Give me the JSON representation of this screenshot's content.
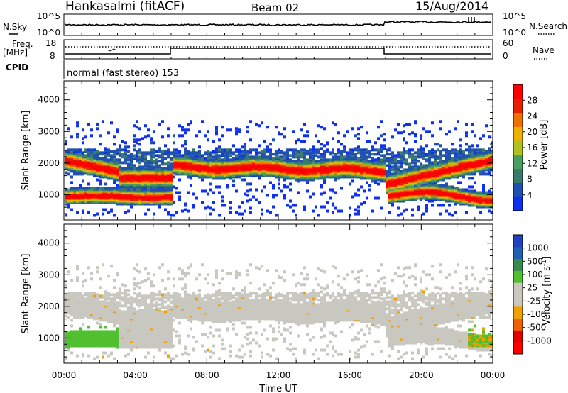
{
  "header": {
    "station": "Hankasalmi (fitACF)",
    "beam": "Beam 02",
    "date": "15/Aug/2014"
  },
  "strip_noise": {
    "left_label": "N.Sky",
    "right_label": "N.Search",
    "left_ticks": [
      "10^5",
      "10^0"
    ],
    "right_ticks": [
      "10^5",
      "10^0"
    ]
  },
  "strip_freq": {
    "left_label_1": "Freq.",
    "left_label_2": "[MHz]",
    "right_label": "Nave",
    "left_ticks": [
      "18",
      "8"
    ],
    "right_ticks": [
      "60",
      "0"
    ]
  },
  "strip_cpid": {
    "label": "CPID",
    "text": "normal (fast stereo) 153"
  },
  "time_axis": {
    "label": "Time UT",
    "ticks": [
      "00:00",
      "04:00",
      "08:00",
      "12:00",
      "16:00",
      "20:00",
      "00:00"
    ]
  },
  "colors": {
    "power_scale": [
      "#1030f0",
      "#2050b0",
      "#3a7a6a",
      "#4aa060",
      "#b0c020",
      "#f0b000",
      "#f07000",
      "#e82000",
      "#ff0000"
    ],
    "velocity_scale": [
      "#2040c0",
      "#2060b0",
      "#3a8a50",
      "#50c030",
      "#c8c8c0",
      "#c8c8c0",
      "#f0a000",
      "#f06000",
      "#e00000",
      "#ff0000"
    ]
  },
  "chart_data": [
    {
      "type": "heatmap",
      "panel": "power",
      "ylabel": "Slant Range [km]",
      "xlabel": "Time UT",
      "x_ticks": [
        "00:00",
        "04:00",
        "08:00",
        "12:00",
        "16:00",
        "20:00",
        "00:00"
      ],
      "y_ticks": [
        1000,
        2000,
        3000,
        4000
      ],
      "ylim": [
        200,
        4600
      ],
      "colorbar_label": "Power [dB]",
      "colorbar_ticks": [
        4,
        8,
        12,
        16,
        20,
        24,
        28
      ],
      "colorbar_range": [
        0,
        32
      ]
    },
    {
      "type": "heatmap",
      "panel": "velocity",
      "ylabel": "Slant Range [km]",
      "xlabel": "Time UT",
      "x_ticks": [
        "00:00",
        "04:00",
        "08:00",
        "12:00",
        "16:00",
        "20:00",
        "00:00"
      ],
      "y_ticks": [
        1000,
        2000,
        3000,
        4000
      ],
      "ylim": [
        200,
        4600
      ],
      "colorbar_label": "Velocity [m s^-1]",
      "colorbar_ticks": [
        1000,
        500,
        100,
        25,
        -25,
        -100,
        -500,
        -1000
      ]
    }
  ]
}
